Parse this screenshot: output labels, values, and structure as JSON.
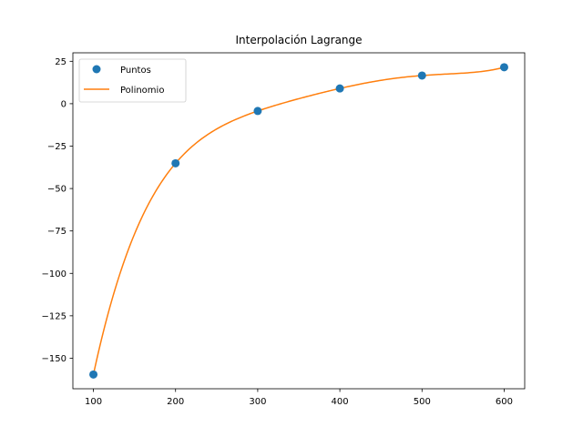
{
  "chart_data": {
    "type": "scatter",
    "title": "Interpolación Lagrange",
    "xlabel": "",
    "ylabel": "",
    "xlim": [
      75,
      625
    ],
    "ylim": [
      -168,
      30
    ],
    "x_ticks": [
      100,
      200,
      300,
      400,
      500,
      600
    ],
    "y_ticks": [
      25,
      0,
      -25,
      -50,
      -75,
      -100,
      -125,
      -150
    ],
    "y_tick_labels": [
      "25",
      "0",
      "−25",
      "−50",
      "−75",
      "−100",
      "−125",
      "−150"
    ],
    "grid": false,
    "legend_position": "top-left",
    "series": [
      {
        "name": "Puntos",
        "kind": "markers",
        "color": "#1f77b4",
        "x": [
          100,
          200,
          300,
          400,
          500,
          600
        ],
        "y": [
          -159.6,
          -35.1,
          -4.3,
          9.0,
          16.6,
          21.5
        ]
      },
      {
        "name": "Polinomio",
        "kind": "line",
        "color": "#ff7f0e",
        "interpolates": "Puntos"
      }
    ]
  }
}
